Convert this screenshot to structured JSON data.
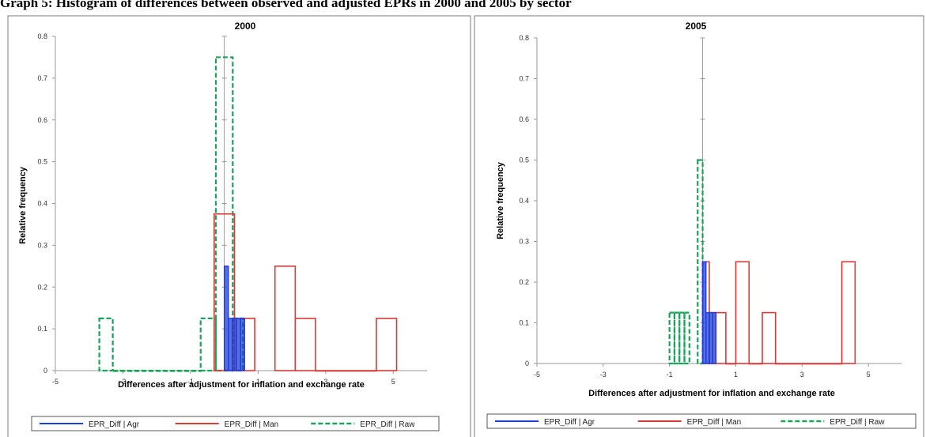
{
  "page": {
    "caption": "Graph 5: Histogram of differences between observed and adjusted EPRs in 2000 and 2005 by sector"
  },
  "colors": {
    "Agr": "#1f3fd6",
    "Man": "#d83a3a",
    "Raw": "#1aa35a",
    "axis": "#9a9a9a",
    "panel_border": "#7a7a7a"
  },
  "chart_data": [
    {
      "type": "bar",
      "subtype": "step-histogram",
      "title": "2000",
      "xlabel": "Differences after adjustment for inflation and exchange rate",
      "ylabel": "Relative frequency",
      "xlim": [
        -5,
        6
      ],
      "ylim": [
        0,
        0.8
      ],
      "x_ticks": [
        -5,
        -3,
        -1,
        1,
        3,
        5
      ],
      "y_ticks": [
        0,
        0.1,
        0.2,
        0.3,
        0.4,
        0.5,
        0.6,
        0.7,
        0.8
      ],
      "y_tick_labels": [
        "0",
        "0.1",
        "0.2",
        "0.3",
        "0.4",
        "0.5",
        "0.6",
        "0.7",
        "0.8"
      ],
      "grid": false,
      "legend_position": "bottom",
      "series": [
        {
          "name": "EPR_Diff | Agr",
          "key": "Agr",
          "style": "solid-fill",
          "bins": [
            [
              0.0,
              0.12,
              0.25
            ],
            [
              0.12,
              0.24,
              0.125
            ],
            [
              0.24,
              0.36,
              0.125
            ],
            [
              0.36,
              0.48,
              0.125
            ],
            [
              0.48,
              0.6,
              0.125
            ]
          ]
        },
        {
          "name": "EPR_Diff | Man",
          "key": "Man",
          "style": "solid",
          "bins": [
            [
              -0.3,
              0.3,
              0.375
            ],
            [
              0.3,
              0.9,
              0.125
            ],
            [
              1.5,
              2.1,
              0.25
            ],
            [
              2.1,
              2.7,
              0.125
            ],
            [
              2.7,
              4.5,
              0.0
            ],
            [
              4.5,
              5.1,
              0.125
            ]
          ]
        },
        {
          "name": "EPR_Diff | Raw",
          "key": "Raw",
          "style": "dashed",
          "bins": [
            [
              -3.7,
              -3.3,
              0.125
            ],
            [
              -3.3,
              -0.7,
              0.0
            ],
            [
              -0.7,
              -0.25,
              0.125
            ],
            [
              -0.25,
              0.25,
              0.75
            ],
            [
              0.25,
              0.55,
              0.125
            ]
          ]
        }
      ]
    },
    {
      "type": "bar",
      "subtype": "step-histogram",
      "title": "2005",
      "xlabel": "Differences after adjustment for inflation and exchange rate",
      "ylabel": "Relative frequency",
      "xlim": [
        -5,
        6
      ],
      "ylim": [
        0,
        0.8
      ],
      "x_ticks": [
        -5,
        -3,
        -1,
        1,
        3,
        5
      ],
      "y_ticks": [
        0,
        0.1,
        0.2,
        0.3,
        0.4,
        0.5,
        0.6,
        0.7,
        0.8
      ],
      "y_tick_labels": [
        "0",
        "0.1",
        "0.2",
        "0.3",
        "0.4",
        "0.5",
        "0.6",
        "0.7",
        "0.8"
      ],
      "grid": false,
      "legend_position": "bottom",
      "series": [
        {
          "name": "EPR_Diff | Agr",
          "key": "Agr",
          "style": "solid-fill",
          "bins": [
            [
              0.0,
              0.1,
              0.25
            ],
            [
              0.1,
              0.2,
              0.125
            ],
            [
              0.2,
              0.3,
              0.125
            ],
            [
              0.3,
              0.4,
              0.125
            ]
          ]
        },
        {
          "name": "EPR_Diff | Man",
          "key": "Man",
          "style": "solid",
          "bins": [
            [
              0.0,
              0.2,
              0.25
            ],
            [
              0.2,
              0.4,
              0.125
            ],
            [
              0.4,
              0.7,
              0.125
            ],
            [
              0.7,
              1.0,
              0.0
            ],
            [
              1.0,
              1.4,
              0.25
            ],
            [
              1.4,
              1.8,
              0.0
            ],
            [
              1.8,
              2.2,
              0.125
            ],
            [
              2.2,
              4.2,
              0.0
            ],
            [
              4.2,
              4.6,
              0.25
            ]
          ]
        },
        {
          "name": "EPR_Diff | Raw",
          "key": "Raw",
          "style": "dashed",
          "bins": [
            [
              -1.0,
              -0.85,
              0.125
            ],
            [
              -0.85,
              -0.7,
              0.125
            ],
            [
              -0.7,
              -0.55,
              0.125
            ],
            [
              -0.55,
              -0.4,
              0.125
            ],
            [
              -0.15,
              0.0,
              0.5
            ]
          ]
        }
      ]
    }
  ]
}
